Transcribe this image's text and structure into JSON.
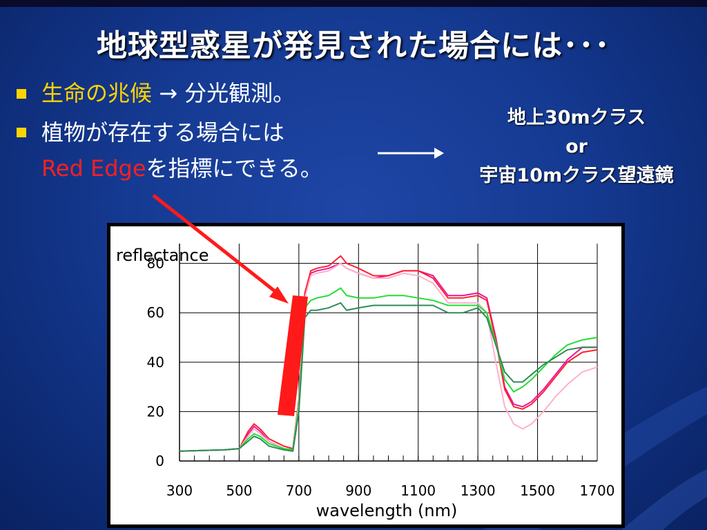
{
  "slide": {
    "title": "地球型惑星が発見された場合には･･･",
    "bullet1_highlight": "生命の兆候",
    "bullet1_rest": " → 分光観測。",
    "bullet2_line1": "植物が存在する場合には",
    "bullet2_red": "Red Edge",
    "bullet2_rest": "を指標にできる。",
    "telescope_line1": "地上30mクラス",
    "telescope_line2": "or",
    "telescope_line3": "宇宙10mクラス望遠鏡",
    "colors": {
      "accent_yellow": "#ffd400",
      "red_edge": "#ff1a1a",
      "background": "#153a92"
    }
  },
  "chart_data": {
    "type": "line",
    "ylabel": "reflectance",
    "xlabel": "wavelength (nm)",
    "xlim": [
      300,
      1700
    ],
    "ylim": [
      0,
      90
    ],
    "xticks": [
      300,
      500,
      700,
      900,
      1100,
      1300,
      1500,
      1700
    ],
    "yticks": [
      0,
      20,
      40,
      60,
      80
    ],
    "grid": true,
    "series": [
      {
        "color": "#e8189a",
        "x": [
          300,
          450,
          500,
          530,
          550,
          570,
          600,
          650,
          680,
          700,
          720,
          740,
          760,
          800,
          840,
          860,
          900,
          950,
          1000,
          1050,
          1100,
          1150,
          1200,
          1250,
          1300,
          1330,
          1360,
          1390,
          1420,
          1450,
          1480,
          1520,
          1560,
          1600,
          1650,
          1700
        ],
        "y": [
          4,
          4.5,
          5,
          11,
          14,
          12,
          8,
          5,
          4.5,
          25,
          68,
          76,
          77,
          78,
          80,
          78,
          76,
          74,
          75,
          77,
          77,
          75,
          67,
          67,
          68,
          66,
          50,
          30,
          23,
          22,
          24,
          29,
          35,
          41,
          46,
          46
        ]
      },
      {
        "color": "#ff2030",
        "x": [
          300,
          450,
          500,
          530,
          550,
          570,
          600,
          650,
          680,
          700,
          720,
          740,
          760,
          800,
          840,
          860,
          900,
          950,
          1000,
          1050,
          1100,
          1150,
          1200,
          1250,
          1300,
          1330,
          1360,
          1390,
          1420,
          1450,
          1480,
          1520,
          1560,
          1600,
          1650,
          1700
        ],
        "y": [
          4,
          4.5,
          5,
          12,
          15,
          13,
          9,
          6,
          5,
          25,
          68,
          77,
          78,
          79,
          83,
          80,
          78,
          75,
          75,
          77,
          77,
          74,
          66,
          66,
          67,
          65,
          49,
          29,
          22,
          21,
          23,
          28,
          34,
          40,
          44,
          45
        ]
      },
      {
        "color": "#ffb0cc",
        "x": [
          300,
          450,
          500,
          530,
          550,
          570,
          600,
          650,
          680,
          700,
          720,
          740,
          760,
          800,
          840,
          860,
          900,
          950,
          1000,
          1050,
          1100,
          1150,
          1200,
          1250,
          1300,
          1330,
          1360,
          1390,
          1420,
          1450,
          1480,
          1520,
          1560,
          1600,
          1650,
          1700
        ],
        "y": [
          4,
          4.5,
          5,
          10,
          13,
          11,
          8,
          5,
          4.5,
          24,
          66,
          75,
          76,
          77,
          80,
          78,
          76,
          74,
          74,
          76,
          75,
          72,
          64,
          64,
          64,
          60,
          40,
          22,
          15,
          13,
          15,
          20,
          26,
          31,
          36,
          38
        ]
      },
      {
        "color": "#22dd33",
        "x": [
          300,
          450,
          500,
          530,
          550,
          570,
          600,
          650,
          680,
          700,
          720,
          740,
          760,
          800,
          840,
          860,
          900,
          950,
          1000,
          1050,
          1100,
          1150,
          1200,
          1250,
          1300,
          1330,
          1360,
          1390,
          1420,
          1450,
          1480,
          1520,
          1560,
          1600,
          1650,
          1700
        ],
        "y": [
          4,
          4.5,
          5,
          9,
          11,
          10,
          7,
          5,
          4.5,
          22,
          62,
          65,
          66,
          67,
          70,
          67,
          66,
          66,
          67,
          67,
          66,
          65,
          63,
          63,
          63,
          60,
          48,
          33,
          28,
          30,
          33,
          38,
          43,
          47,
          49,
          50
        ]
      },
      {
        "color": "#2e8b57",
        "x": [
          300,
          450,
          500,
          530,
          550,
          570,
          600,
          650,
          680,
          700,
          720,
          740,
          760,
          800,
          840,
          860,
          900,
          950,
          1000,
          1050,
          1100,
          1150,
          1200,
          1250,
          1300,
          1330,
          1360,
          1390,
          1420,
          1450,
          1480,
          1520,
          1560,
          1600,
          1650,
          1700
        ],
        "y": [
          4,
          4.5,
          5,
          8,
          10,
          9,
          6,
          4.5,
          4,
          20,
          58,
          61,
          61,
          62,
          64,
          61,
          62,
          63,
          63,
          63,
          63,
          63,
          60,
          60,
          62,
          58,
          47,
          36,
          32,
          32,
          35,
          39,
          42,
          45,
          46,
          46
        ]
      }
    ]
  }
}
